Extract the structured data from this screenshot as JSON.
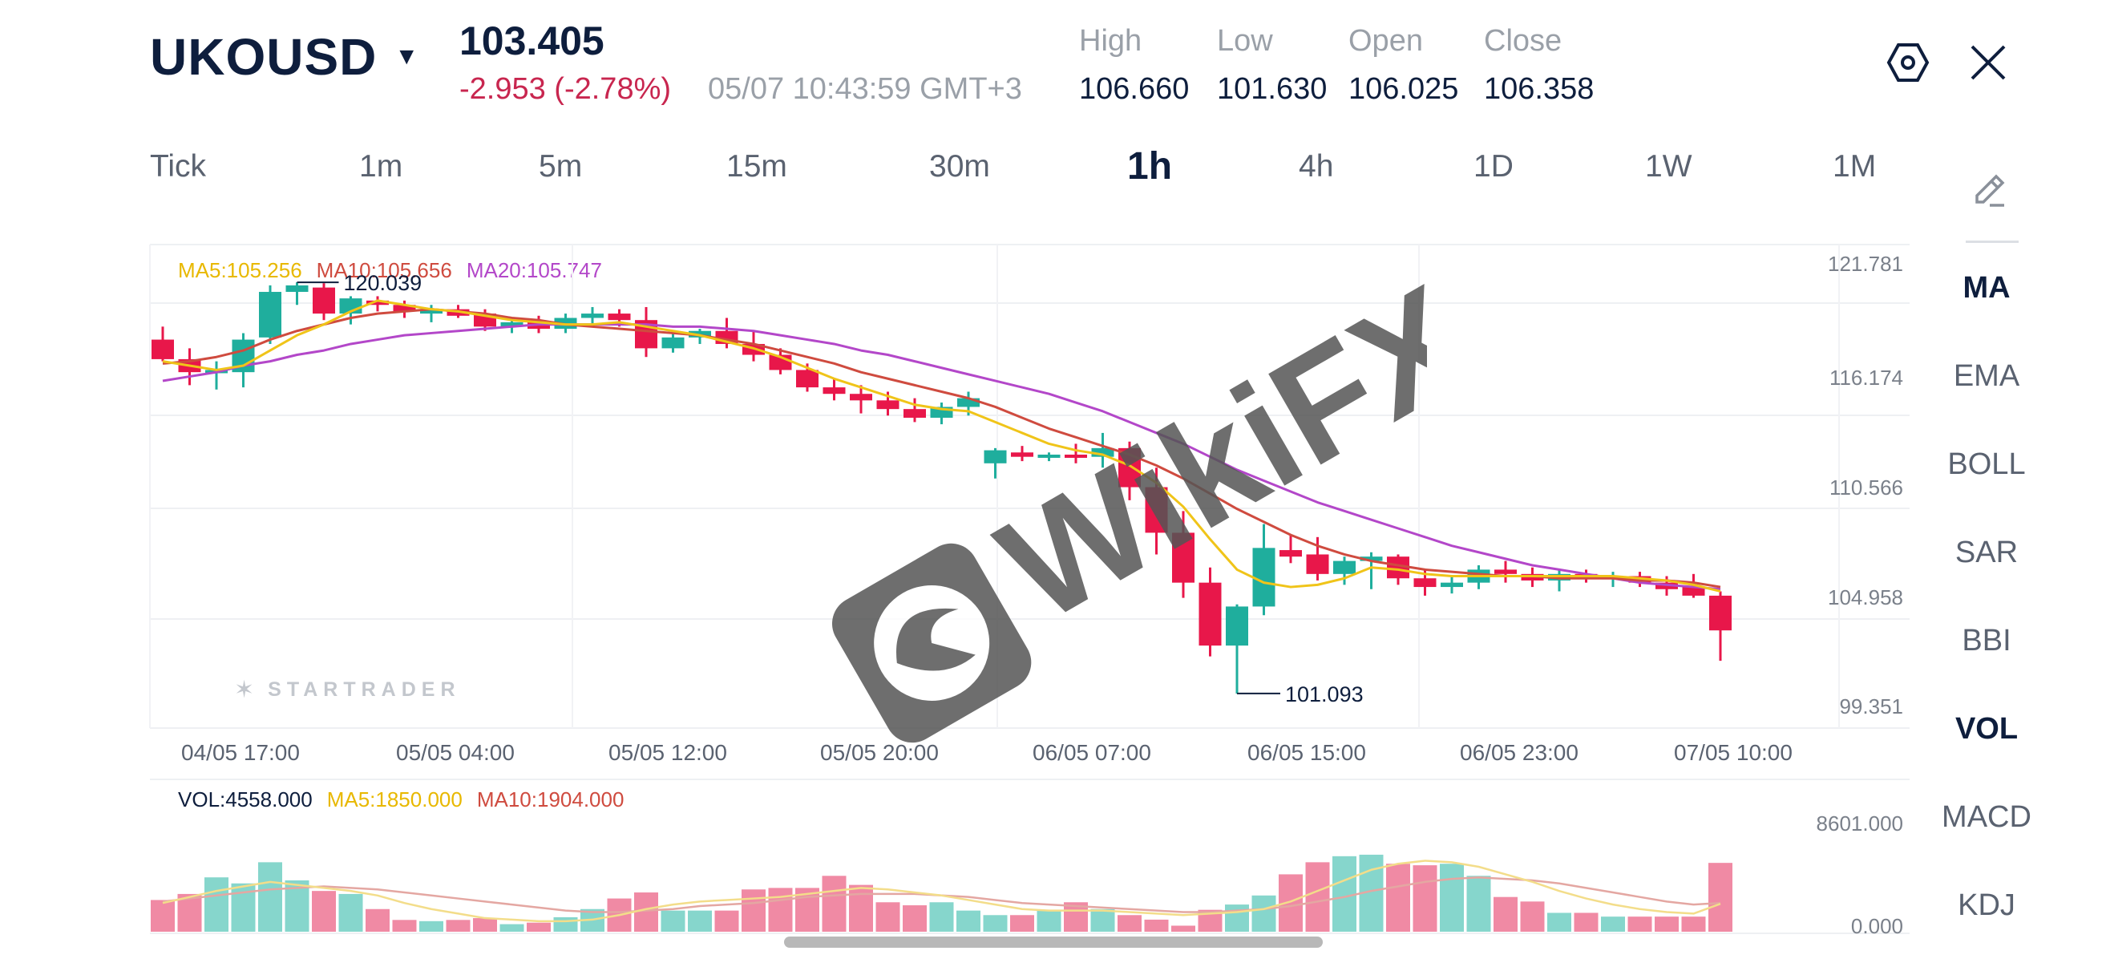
{
  "header": {
    "symbol": "UKOUSD",
    "price": "103.405",
    "change": "-2.953 (-2.78%)",
    "timestamp": "05/07 10:43:59 GMT+3",
    "stats": [
      {
        "label": "High",
        "value": "106.660"
      },
      {
        "label": "Low",
        "value": "101.630"
      },
      {
        "label": "Open",
        "value": "106.025"
      },
      {
        "label": "Close",
        "value": "106.358"
      }
    ],
    "icons": [
      "settings-icon",
      "close-icon",
      "dropdown-caret-icon"
    ]
  },
  "timeframes": [
    "Tick",
    "1m",
    "5m",
    "15m",
    "30m",
    "1h",
    "4h",
    "1D",
    "1W",
    "1M"
  ],
  "active_timeframe": "1h",
  "indicators": [
    "MA",
    "EMA",
    "BOLL",
    "SAR",
    "BBI",
    "VOL",
    "MACD",
    "KDJ"
  ],
  "active_indicators": [
    "MA",
    "VOL"
  ],
  "ma_legend": {
    "ma5": "MA5:105.256",
    "ma10": "MA10:105.656",
    "ma20": "MA20:105.747"
  },
  "vol_legend": {
    "vol": "VOL:4558.000",
    "ma5": "MA5:1850.000",
    "ma10": "MA10:1904.000"
  },
  "watermark": {
    "brand": "STARTRADER",
    "overlay": "WikiFX"
  },
  "colors": {
    "up": "#1fae9d",
    "down": "#e8174a",
    "ma5": "#f0c419",
    "ma10": "#cf4b3f",
    "ma20": "#b347c9",
    "up_vol": "#86d6cc",
    "down_vol": "#f08aa4"
  },
  "chart_data": {
    "type": "candlestick",
    "price_axis": [
      "121.781",
      "116.174",
      "110.566",
      "104.958",
      "99.351"
    ],
    "ylim": [
      99.351,
      121.781
    ],
    "time_axis": [
      "04/05 17:00",
      "05/05 04:00",
      "05/05 12:00",
      "05/05 20:00",
      "06/05 07:00",
      "06/05 15:00",
      "06/05 23:00",
      "07/05 10:00"
    ],
    "high_marker": "120.039",
    "low_marker": "101.093",
    "candles": [
      {
        "o": 117.4,
        "h": 118.0,
        "l": 116.4,
        "c": 116.5
      },
      {
        "o": 116.5,
        "h": 117.0,
        "l": 115.3,
        "c": 115.9
      },
      {
        "o": 115.9,
        "h": 116.4,
        "l": 115.1,
        "c": 116.0
      },
      {
        "o": 115.9,
        "h": 117.7,
        "l": 115.2,
        "c": 117.4
      },
      {
        "o": 117.5,
        "h": 119.9,
        "l": 117.2,
        "c": 119.6
      },
      {
        "o": 119.6,
        "h": 120.04,
        "l": 119.0,
        "c": 119.9
      },
      {
        "o": 119.8,
        "h": 120.0,
        "l": 118.3,
        "c": 118.6
      },
      {
        "o": 118.6,
        "h": 119.4,
        "l": 118.1,
        "c": 119.3
      },
      {
        "o": 119.2,
        "h": 119.4,
        "l": 118.7,
        "c": 119.0
      },
      {
        "o": 119.0,
        "h": 119.2,
        "l": 118.4,
        "c": 118.7
      },
      {
        "o": 118.6,
        "h": 119.0,
        "l": 118.2,
        "c": 118.8
      },
      {
        "o": 118.8,
        "h": 119.0,
        "l": 118.4,
        "c": 118.5
      },
      {
        "o": 118.6,
        "h": 118.8,
        "l": 117.8,
        "c": 118.0
      },
      {
        "o": 118.0,
        "h": 118.4,
        "l": 117.7,
        "c": 118.2
      },
      {
        "o": 118.2,
        "h": 118.5,
        "l": 117.7,
        "c": 117.9
      },
      {
        "o": 117.9,
        "h": 118.6,
        "l": 117.7,
        "c": 118.4
      },
      {
        "o": 118.4,
        "h": 118.9,
        "l": 118.0,
        "c": 118.6
      },
      {
        "o": 118.6,
        "h": 118.8,
        "l": 118.0,
        "c": 118.3
      },
      {
        "o": 118.3,
        "h": 118.9,
        "l": 116.6,
        "c": 117.0
      },
      {
        "o": 117.0,
        "h": 117.8,
        "l": 116.8,
        "c": 117.5
      },
      {
        "o": 117.5,
        "h": 117.9,
        "l": 117.2,
        "c": 117.8
      },
      {
        "o": 117.8,
        "h": 118.4,
        "l": 117.0,
        "c": 117.2
      },
      {
        "o": 117.2,
        "h": 117.8,
        "l": 116.4,
        "c": 116.7
      },
      {
        "o": 116.7,
        "h": 117.0,
        "l": 115.8,
        "c": 116.0
      },
      {
        "o": 116.0,
        "h": 116.3,
        "l": 115.0,
        "c": 115.2
      },
      {
        "o": 115.2,
        "h": 115.6,
        "l": 114.6,
        "c": 114.9
      },
      {
        "o": 114.9,
        "h": 115.3,
        "l": 114.0,
        "c": 114.6
      },
      {
        "o": 114.6,
        "h": 115.0,
        "l": 113.9,
        "c": 114.2
      },
      {
        "o": 114.2,
        "h": 114.7,
        "l": 113.6,
        "c": 113.8
      },
      {
        "o": 113.8,
        "h": 114.5,
        "l": 113.5,
        "c": 114.3
      },
      {
        "o": 114.3,
        "h": 115.0,
        "l": 113.9,
        "c": 114.7
      },
      {
        "o": 111.7,
        "h": 112.4,
        "l": 111.0,
        "c": 112.3
      },
      {
        "o": 112.2,
        "h": 112.5,
        "l": 111.8,
        "c": 112.0
      },
      {
        "o": 112.0,
        "h": 112.2,
        "l": 111.8,
        "c": 112.1
      },
      {
        "o": 112.1,
        "h": 112.6,
        "l": 111.7,
        "c": 112.0
      },
      {
        "o": 112.0,
        "h": 113.1,
        "l": 111.5,
        "c": 112.4
      },
      {
        "o": 112.4,
        "h": 112.7,
        "l": 110.0,
        "c": 110.6
      },
      {
        "o": 110.6,
        "h": 111.5,
        "l": 107.5,
        "c": 108.5
      },
      {
        "o": 108.5,
        "h": 109.5,
        "l": 105.5,
        "c": 106.2
      },
      {
        "o": 106.2,
        "h": 106.9,
        "l": 102.8,
        "c": 103.3
      },
      {
        "o": 103.3,
        "h": 105.2,
        "l": 101.09,
        "c": 105.1
      },
      {
        "o": 105.1,
        "h": 108.9,
        "l": 104.7,
        "c": 107.8
      },
      {
        "o": 107.7,
        "h": 108.4,
        "l": 107.1,
        "c": 107.4
      },
      {
        "o": 107.5,
        "h": 108.3,
        "l": 106.3,
        "c": 106.6
      },
      {
        "o": 106.6,
        "h": 107.4,
        "l": 106.1,
        "c": 107.2
      },
      {
        "o": 107.2,
        "h": 107.6,
        "l": 105.9,
        "c": 107.4
      },
      {
        "o": 107.4,
        "h": 107.5,
        "l": 106.1,
        "c": 106.4
      },
      {
        "o": 106.4,
        "h": 106.8,
        "l": 105.6,
        "c": 106.0
      },
      {
        "o": 106.0,
        "h": 106.5,
        "l": 105.7,
        "c": 106.2
      },
      {
        "o": 106.2,
        "h": 107.0,
        "l": 105.9,
        "c": 106.8
      },
      {
        "o": 106.8,
        "h": 107.2,
        "l": 106.2,
        "c": 106.6
      },
      {
        "o": 106.6,
        "h": 106.9,
        "l": 106.0,
        "c": 106.3
      },
      {
        "o": 106.3,
        "h": 106.8,
        "l": 105.8,
        "c": 106.6
      },
      {
        "o": 106.6,
        "h": 106.8,
        "l": 106.2,
        "c": 106.4
      },
      {
        "o": 106.4,
        "h": 106.7,
        "l": 106.0,
        "c": 106.5
      },
      {
        "o": 106.5,
        "h": 106.7,
        "l": 106.0,
        "c": 106.2
      },
      {
        "o": 106.2,
        "h": 106.5,
        "l": 105.6,
        "c": 105.9
      },
      {
        "o": 106.0,
        "h": 106.6,
        "l": 105.5,
        "c": 105.6
      },
      {
        "o": 105.6,
        "h": 105.8,
        "l": 102.6,
        "c": 104.0
      }
    ],
    "ma5": [
      116.4,
      116.2,
      116.0,
      116.2,
      116.9,
      117.6,
      118.1,
      118.7,
      119.2,
      119.0,
      118.8,
      118.7,
      118.5,
      118.3,
      118.2,
      118.1,
      118.1,
      118.2,
      118.0,
      117.8,
      117.6,
      117.3,
      117.0,
      116.6,
      116.1,
      115.6,
      115.2,
      114.8,
      114.4,
      114.2,
      114.1,
      113.6,
      113.1,
      112.6,
      112.3,
      112.1,
      111.6,
      110.8,
      109.7,
      108.2,
      106.8,
      106.2,
      106.0,
      106.1,
      106.4,
      106.9,
      106.8,
      106.6,
      106.5,
      106.5,
      106.5,
      106.5,
      106.5,
      106.5,
      106.5,
      106.4,
      106.3,
      106.1,
      105.8
    ],
    "ma10": [
      116.3,
      116.4,
      116.6,
      116.9,
      117.4,
      117.8,
      118.1,
      118.4,
      118.6,
      118.7,
      118.8,
      118.7,
      118.6,
      118.4,
      118.3,
      118.1,
      118.0,
      117.9,
      117.8,
      117.7,
      117.6,
      117.4,
      117.2,
      116.9,
      116.6,
      116.3,
      115.9,
      115.6,
      115.3,
      115.0,
      114.7,
      114.3,
      113.8,
      113.3,
      112.9,
      112.5,
      112.1,
      111.6,
      111.0,
      110.3,
      109.6,
      109.0,
      108.4,
      107.9,
      107.5,
      107.2,
      107.0,
      106.8,
      106.7,
      106.6,
      106.5,
      106.5,
      106.4,
      106.4,
      106.4,
      106.3,
      106.3,
      106.2,
      106.0
    ],
    "ma20": [
      115.5,
      115.7,
      115.9,
      116.2,
      116.4,
      116.7,
      116.9,
      117.2,
      117.4,
      117.6,
      117.7,
      117.8,
      117.9,
      118.0,
      118.1,
      118.1,
      118.1,
      118.1,
      118.1,
      118.0,
      118.0,
      117.9,
      117.8,
      117.6,
      117.4,
      117.2,
      116.9,
      116.7,
      116.4,
      116.1,
      115.8,
      115.5,
      115.2,
      114.9,
      114.5,
      114.1,
      113.6,
      113.1,
      112.6,
      112.0,
      111.4,
      110.9,
      110.4,
      109.9,
      109.5,
      109.1,
      108.7,
      108.3,
      107.9,
      107.6,
      107.3,
      107.0,
      106.8,
      106.6,
      106.4,
      106.2,
      106.1,
      106.0,
      105.9
    ],
    "volume_axis": [
      "8601.000",
      "0.000"
    ],
    "volume": [
      2100,
      2500,
      3600,
      3200,
      4600,
      3400,
      2700,
      2500,
      1500,
      780,
      700,
      780,
      900,
      500,
      600,
      960,
      1500,
      2200,
      2600,
      1400,
      1400,
      1400,
      2800,
      2900,
      2900,
      3700,
      3100,
      1950,
      1750,
      1950,
      1400,
      1100,
      1100,
      1400,
      1950,
      1500,
      1100,
      800,
      400,
      1450,
      1800,
      2400,
      3800,
      4600,
      5000,
      5100,
      4500,
      4400,
      4500,
      3700,
      2300,
      2000,
      1250,
      1250,
      1000,
      1000,
      1000,
      1000,
      4558
    ],
    "vol_ma5": [
      1900,
      2300,
      2700,
      3000,
      3300,
      3100,
      2900,
      2700,
      2400,
      1900,
      1500,
      1200,
      900,
      800,
      700,
      700,
      800,
      1100,
      1500,
      1800,
      2000,
      2100,
      2200,
      2300,
      2500,
      2700,
      2900,
      2800,
      2600,
      2400,
      2100,
      1800,
      1500,
      1400,
      1400,
      1400,
      1300,
      1200,
      1100,
      1200,
      1300,
      1500,
      2000,
      2700,
      3400,
      4100,
      4500,
      4700,
      4600,
      4300,
      3800,
      3300,
      2700,
      2200,
      1800,
      1500,
      1300,
      1200,
      1850
    ],
    "vol_ma10": [
      2000,
      2200,
      2400,
      2600,
      2800,
      2900,
      3000,
      2900,
      2800,
      2600,
      2400,
      2200,
      2000,
      1800,
      1600,
      1400,
      1300,
      1300,
      1400,
      1500,
      1700,
      1800,
      1900,
      2100,
      2300,
      2400,
      2500,
      2500,
      2500,
      2400,
      2300,
      2100,
      1900,
      1800,
      1700,
      1600,
      1500,
      1400,
      1300,
      1300,
      1400,
      1500,
      1700,
      2000,
      2300,
      2700,
      3000,
      3300,
      3500,
      3600,
      3500,
      3400,
      3200,
      2900,
      2600,
      2300,
      2000,
      1800,
      1904
    ]
  }
}
